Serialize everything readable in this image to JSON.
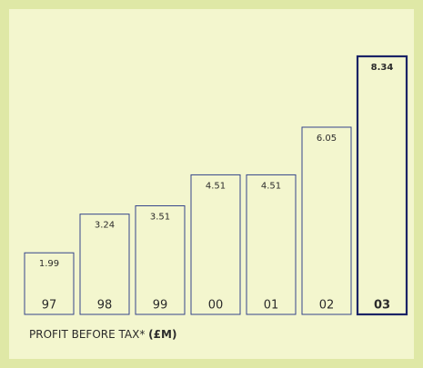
{
  "chart_data": {
    "type": "bar",
    "title": "PROFIT BEFORE TAX*",
    "title_unit": "(£M)",
    "categories": [
      "97",
      "98",
      "99",
      "00",
      "01",
      "02",
      "03"
    ],
    "values": [
      1.99,
      3.24,
      3.51,
      4.51,
      4.51,
      6.05,
      8.34
    ],
    "color": "#34448a",
    "highlight_color": "#1a2366",
    "highlight_index": 6
  }
}
